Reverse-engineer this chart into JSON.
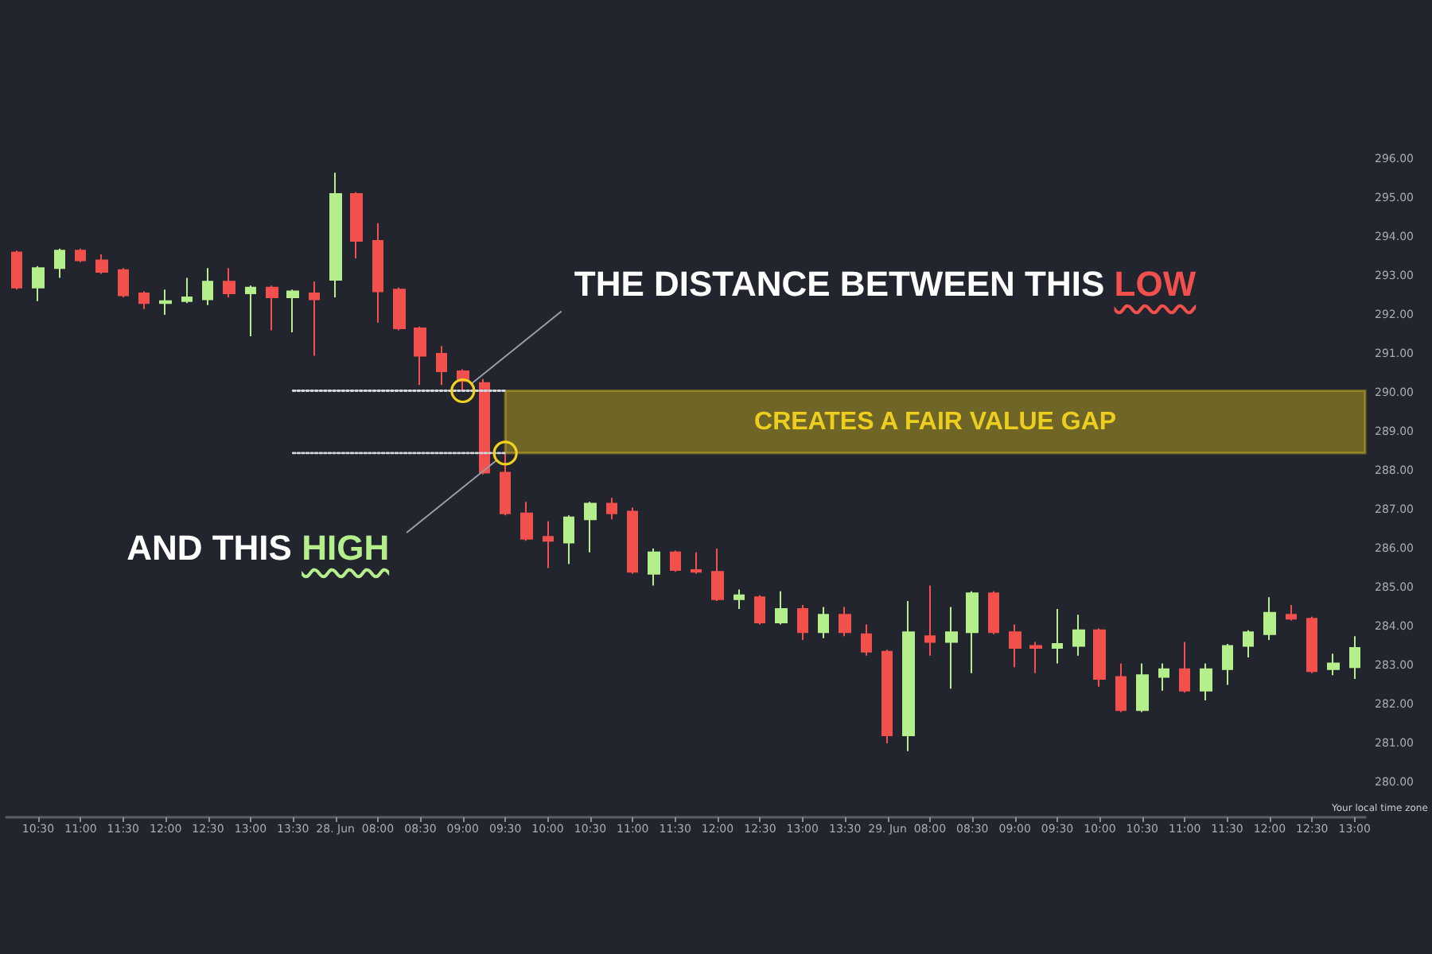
{
  "chart_data": {
    "type": "candlestick",
    "categories": [
      null,
      "10:30",
      null,
      "11:00",
      null,
      "11:30",
      null,
      "12:00",
      null,
      "12:30",
      null,
      "13:00",
      null,
      "13:30",
      null,
      "28. Jun",
      null,
      "08:00",
      null,
      "08:30",
      null,
      "09:00",
      null,
      "09:30",
      null,
      "10:00",
      null,
      "10:30",
      null,
      "11:00",
      null,
      "11:30",
      null,
      "12:00",
      null,
      "12:30",
      null,
      "13:00",
      null,
      "13:30",
      null,
      "29. Jun",
      null,
      "08:00",
      null,
      "08:30",
      null,
      "09:00",
      null,
      "09:30",
      null,
      "10:00",
      null,
      "10:30",
      null,
      "11:00",
      null,
      "11:30",
      null,
      "12:00",
      null,
      "12:30",
      null,
      "13:00"
    ],
    "ohlc": [
      [
        293.6,
        293.65,
        292.65,
        292.7
      ],
      [
        292.7,
        293.25,
        292.35,
        293.2
      ],
      [
        293.2,
        293.7,
        292.95,
        293.65
      ],
      [
        293.65,
        293.7,
        293.35,
        293.4
      ],
      [
        293.4,
        293.55,
        293.05,
        293.1
      ],
      [
        293.15,
        293.2,
        292.45,
        292.5
      ],
      [
        292.55,
        292.6,
        292.15,
        292.3
      ],
      [
        292.3,
        292.65,
        292.0,
        292.35
      ],
      [
        292.35,
        292.95,
        292.3,
        292.45
      ],
      [
        292.4,
        293.2,
        292.25,
        292.85
      ],
      [
        292.85,
        293.2,
        292.45,
        292.55
      ],
      [
        292.55,
        292.75,
        291.45,
        292.7
      ],
      [
        292.7,
        292.75,
        291.6,
        292.45
      ],
      [
        292.45,
        292.65,
        291.55,
        292.6
      ],
      [
        292.55,
        292.85,
        290.95,
        292.4
      ],
      [
        292.9,
        295.65,
        292.45,
        295.1
      ],
      [
        295.1,
        295.15,
        293.45,
        293.9
      ],
      [
        293.9,
        294.35,
        291.8,
        292.6
      ],
      [
        292.65,
        292.7,
        291.6,
        291.65
      ],
      [
        291.65,
        291.7,
        290.2,
        290.95
      ],
      [
        291.0,
        291.2,
        290.2,
        290.55
      ],
      [
        290.55,
        290.6,
        290.05,
        290.3
      ],
      [
        290.25,
        290.35,
        287.9,
        287.95
      ],
      [
        287.95,
        288.45,
        286.85,
        286.9
      ],
      [
        286.9,
        287.2,
        286.2,
        286.25
      ],
      [
        286.3,
        286.7,
        285.5,
        286.2
      ],
      [
        286.15,
        286.85,
        285.6,
        286.8
      ],
      [
        286.75,
        287.2,
        285.9,
        287.15
      ],
      [
        287.15,
        287.3,
        286.75,
        286.9
      ],
      [
        286.95,
        287.05,
        285.35,
        285.4
      ],
      [
        285.35,
        286.0,
        285.05,
        285.9
      ],
      [
        285.9,
        285.95,
        285.4,
        285.45
      ],
      [
        285.45,
        285.9,
        285.35,
        285.4
      ],
      [
        285.4,
        286.0,
        284.65,
        284.7
      ],
      [
        284.7,
        284.95,
        284.45,
        284.8
      ],
      [
        284.75,
        284.8,
        284.05,
        284.1
      ],
      [
        284.1,
        284.9,
        284.05,
        284.45
      ],
      [
        284.45,
        284.55,
        283.65,
        283.85
      ],
      [
        283.85,
        284.5,
        283.7,
        284.3
      ],
      [
        284.3,
        284.5,
        283.75,
        283.85
      ],
      [
        283.8,
        284.05,
        283.25,
        283.35
      ],
      [
        283.35,
        283.4,
        281.0,
        281.2
      ],
      [
        281.2,
        284.65,
        280.8,
        283.85
      ],
      [
        283.75,
        285.05,
        283.25,
        283.6
      ],
      [
        283.6,
        284.5,
        282.4,
        283.85
      ],
      [
        283.85,
        284.9,
        282.8,
        284.85
      ],
      [
        284.85,
        284.9,
        283.8,
        283.85
      ],
      [
        283.85,
        284.05,
        282.95,
        283.45
      ],
      [
        283.5,
        283.6,
        282.8,
        283.45
      ],
      [
        283.45,
        284.45,
        283.05,
        283.55
      ],
      [
        283.5,
        284.3,
        283.25,
        283.9
      ],
      [
        283.9,
        283.95,
        282.45,
        282.65
      ],
      [
        282.7,
        283.05,
        281.8,
        281.85
      ],
      [
        281.85,
        283.05,
        281.8,
        282.75
      ],
      [
        282.7,
        283.05,
        282.35,
        282.9
      ],
      [
        282.9,
        283.6,
        282.3,
        282.35
      ],
      [
        282.35,
        283.05,
        282.1,
        282.9
      ],
      [
        282.9,
        283.55,
        282.5,
        283.5
      ],
      [
        283.5,
        283.9,
        283.2,
        283.85
      ],
      [
        283.8,
        284.75,
        283.65,
        284.35
      ],
      [
        284.3,
        284.55,
        284.15,
        284.2
      ],
      [
        284.2,
        284.25,
        282.8,
        282.85
      ],
      [
        282.9,
        283.3,
        282.75,
        283.05
      ],
      [
        282.95,
        283.75,
        282.65,
        283.45
      ]
    ],
    "colors": [
      "#f1504c",
      "#b5ef8c",
      "#b5ef8c",
      "#f1504c",
      "#f1504c",
      "#f1504c",
      "#f1504c",
      "#b5ef8c",
      "#b5ef8c",
      "#b5ef8c",
      "#f1504c",
      "#b5ef8c",
      "#f1504c",
      "#b5ef8c",
      "#f1504c",
      "#b5ef8c",
      "#f1504c",
      "#f1504c",
      "#f1504c",
      "#f1504c",
      "#f1504c",
      "#f1504c",
      "#f1504c",
      "#f1504c",
      "#f1504c",
      "#f1504c",
      "#b5ef8c",
      "#b5ef8c",
      "#f1504c",
      "#f1504c",
      "#b5ef8c",
      "#f1504c",
      "#f1504c",
      "#f1504c",
      "#b5ef8c",
      "#f1504c",
      "#b5ef8c",
      "#f1504c",
      "#b5ef8c",
      "#f1504c",
      "#f1504c",
      "#f1504c",
      "#b5ef8c",
      "#f1504c",
      "#b5ef8c",
      "#b5ef8c",
      "#f1504c",
      "#f1504c",
      "#f1504c",
      "#b5ef8c",
      "#b5ef8c",
      "#f1504c",
      "#f1504c",
      "#b5ef8c",
      "#b5ef8c",
      "#f1504c",
      "#b5ef8c",
      "#b5ef8c",
      "#b5ef8c",
      "#b5ef8c",
      "#f1504c",
      "#f1504c",
      "#b5ef8c",
      "#b5ef8c"
    ],
    "series": [
      {
        "type": "line",
        "x": [
          "13:30",
          "09:30"
        ],
        "values": [
          290.05,
          290.05
        ],
        "color": "#d4d6dc",
        "line_style": "dotted",
        "marker": "none"
      },
      {
        "type": "line",
        "x": [
          "13:30",
          "09:30"
        ],
        "values": [
          288.45,
          288.45
        ],
        "color": "#d4d6dc",
        "line_style": "dotted"
      }
    ],
    "ylim": [
      279.1,
      296
    ],
    "yticks": [
      {
        "value": 280,
        "label": "280.00"
      },
      {
        "value": 281,
        "label": "281.00"
      },
      {
        "value": 282,
        "label": "282.00"
      },
      {
        "value": 283,
        "label": "283.00"
      },
      {
        "value": 284,
        "label": "284.00"
      },
      {
        "value": 285,
        "label": "285.00"
      },
      {
        "value": 286,
        "label": "286.00"
      },
      {
        "value": 287,
        "label": "287.00"
      },
      {
        "value": 288,
        "label": "288.00"
      },
      {
        "value": 289,
        "label": "289.00"
      },
      {
        "value": 290,
        "label": "290.00"
      },
      {
        "value": 291,
        "label": "291.00"
      },
      {
        "value": 292,
        "label": "292.00"
      },
      {
        "value": 293,
        "label": "293.00"
      },
      {
        "value": 294,
        "label": "294.00"
      },
      {
        "value": 295,
        "label": "295.00"
      },
      {
        "value": 296,
        "label": "296.00"
      }
    ],
    "bands": [
      {
        "axis": "y",
        "from": 288.45,
        "to": 290.05,
        "label": "CREATES A FAIR VALUE GAP",
        "color": "#eccf1e"
      }
    ],
    "annotations": [
      {
        "text": "THE DISTANCE BETWEEN THIS LOW",
        "x": "09:00",
        "y": 290.05
      },
      {
        "text": "AND THIS HIGH",
        "x": "09:30",
        "y": 288.45
      },
      "Your local time zone"
    ]
  }
}
